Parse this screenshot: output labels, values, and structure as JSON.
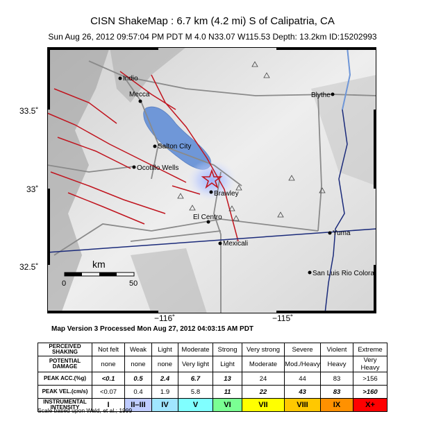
{
  "title": "CISN ShakeMap : 6.7 km (4.2 mi) S of Calipatria, CA",
  "subtitle": "Sun Aug 26, 2012 09:57:04 PM PDT    M 4.0    N33.07 W115.53    Depth: 13.2km    ID:15202993",
  "map": {
    "lat_labels": [
      "33.5˚",
      "33˚",
      "32.5˚"
    ],
    "lon_labels": [
      "−116˚",
      "−115˚"
    ],
    "cities": [
      "Indio",
      "Mecca",
      "Blythe",
      "Salton City",
      "Ocotillo Wells",
      "Brawley",
      "El Centro",
      "Mexicali",
      "Yuma",
      "San Luis Rio Colora"
    ],
    "scale_unit": "km",
    "scale_ticks": [
      "0",
      "50"
    ],
    "epicenter_symbol": "star-icon"
  },
  "version": "Map Version 3 Processed Mon Aug 27, 2012 04:03:15 AM PDT",
  "legend": {
    "perceived_header": "PERCEIVED SHAKING",
    "perceived": [
      "Not felt",
      "Weak",
      "Light",
      "Moderate",
      "Strong",
      "Very strong",
      "Severe",
      "Violent",
      "Extreme"
    ],
    "damage_header": "POTENTIAL DAMAGE",
    "damage": [
      "none",
      "none",
      "none",
      "Very light",
      "Light",
      "Moderate",
      "Mod./Heavy",
      "Heavy",
      "Very Heavy"
    ],
    "acc_header": "PEAK ACC.(%g)",
    "acc": [
      "<0.1",
      "0.5",
      "2.4",
      "6.7",
      "13",
      "24",
      "44",
      "83",
      ">156"
    ],
    "vel_header": "PEAK VEL.(cm/s)",
    "vel": [
      "<0.07",
      "0.4",
      "1.9",
      "5.8",
      "11",
      "22",
      "43",
      "83",
      ">160"
    ],
    "intensity_header": "INSTRUMENTAL INTENSITY",
    "intensity": [
      "I",
      "II–III",
      "IV",
      "V",
      "VI",
      "VII",
      "VIII",
      "IX",
      "X+"
    ],
    "intensity_colors": [
      "#ffffff",
      "#bfccff",
      "#a0e6ff",
      "#80ffff",
      "#7aff93",
      "#ffff00",
      "#ffc800",
      "#ff9100",
      "#ff0000"
    ]
  },
  "scale_note": "Scale based upon Wald, et al.; 1999"
}
